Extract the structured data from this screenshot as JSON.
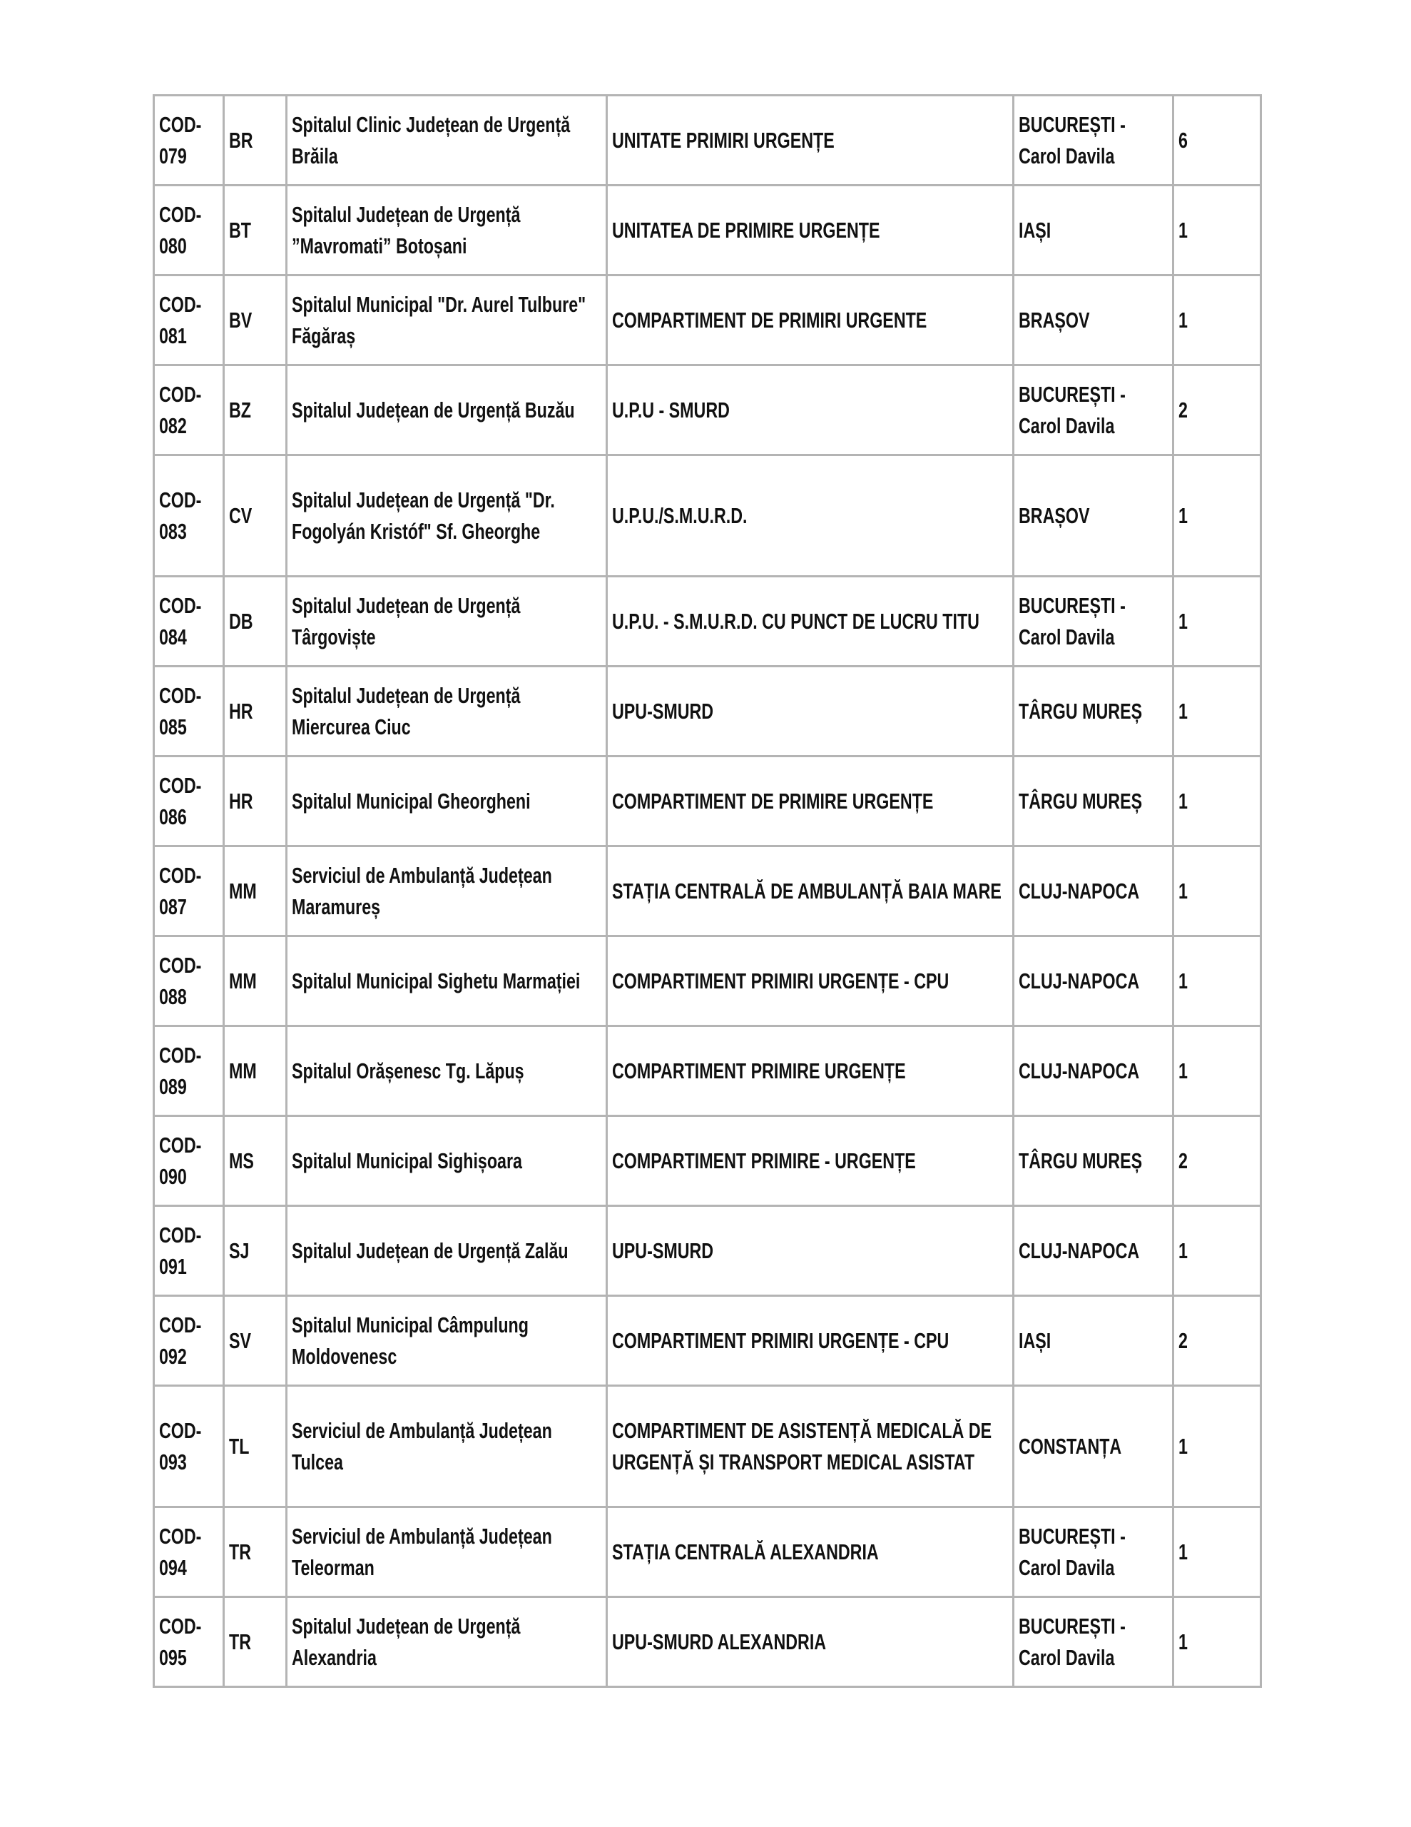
{
  "rows": [
    {
      "code": "COD-079",
      "county": "BR",
      "hospital": "Spitalul Clinic Județean de Urgență Brăila",
      "unit": "UNITATE PRIMIRI URGENȚE",
      "center": "BUCUREȘTI - Carol Davila",
      "count": "6"
    },
    {
      "code": "COD-080",
      "county": "BT",
      "hospital": "Spitalul Județean de Urgență ”Mavromati” Botoșani",
      "unit": "UNITATEA DE PRIMIRE URGENȚE",
      "center": "IAȘI",
      "count": "1"
    },
    {
      "code": "COD-081",
      "county": "BV",
      "hospital": "Spitalul Municipal \"Dr. Aurel Tulbure\" Făgăraș",
      "unit": "COMPARTIMENT DE PRIMIRI URGENTE",
      "center": "BRAȘOV",
      "count": "1"
    },
    {
      "code": "COD-082",
      "county": "BZ",
      "hospital": "Spitalul Județean de Urgență Buzău",
      "unit": "U.P.U - SMURD",
      "center": "BUCUREȘTI - Carol Davila",
      "count": "2"
    },
    {
      "code": "COD-083",
      "county": "CV",
      "hospital": "Spitalul Județean de Urgență \"Dr. Fogolyán Kristóf\" Sf. Gheorghe",
      "unit": "U.P.U./S.M.U.R.D.",
      "center": "BRAȘOV",
      "count": "1"
    },
    {
      "code": "COD-084",
      "county": "DB",
      "hospital": "Spitalul Județean de Urgență Târgoviște",
      "unit": "U.P.U. - S.M.U.R.D. CU PUNCT DE LUCRU TITU",
      "center": "BUCUREȘTI - Carol Davila",
      "count": "1"
    },
    {
      "code": "COD-085",
      "county": "HR",
      "hospital": "Spitalul Județean de Urgență Miercurea Ciuc",
      "unit": "UPU-SMURD",
      "center": "TÂRGU MUREȘ",
      "count": "1"
    },
    {
      "code": "COD-086",
      "county": "HR",
      "hospital": "Spitalul Municipal Gheorgheni",
      "unit": "COMPARTIMENT DE PRIMIRE URGENȚE",
      "center": "TÂRGU MUREȘ",
      "count": "1"
    },
    {
      "code": "COD-087",
      "county": "MM",
      "hospital": "Serviciul de Ambulanță Județean Maramureș",
      "unit": "STAȚIA CENTRALĂ DE AMBULANȚĂ BAIA MARE",
      "center": "CLUJ-NAPOCA",
      "count": "1"
    },
    {
      "code": "COD-088",
      "county": "MM",
      "hospital": "Spitalul Municipal Sighetu Marmației",
      "unit": "COMPARTIMENT PRIMIRI URGENȚE - CPU",
      "center": "CLUJ-NAPOCA",
      "count": "1"
    },
    {
      "code": "COD-089",
      "county": "MM",
      "hospital": "Spitalul Orășenesc Tg. Lăpuș",
      "unit": "COMPARTIMENT PRIMIRE URGENȚE",
      "center": "CLUJ-NAPOCA",
      "count": "1"
    },
    {
      "code": "COD-090",
      "county": "MS",
      "hospital": "Spitalul Municipal Sighișoara",
      "unit": "COMPARTIMENT PRIMIRE - URGENȚE",
      "center": "TÂRGU MUREȘ",
      "count": "2"
    },
    {
      "code": "COD-091",
      "county": "SJ",
      "hospital": "Spitalul Județean de Urgență Zalău",
      "unit": "UPU-SMURD",
      "center": "CLUJ-NAPOCA",
      "count": "1"
    },
    {
      "code": "COD-092",
      "county": "SV",
      "hospital": "Spitalul Municipal Câmpulung Moldovenesc",
      "unit": "COMPARTIMENT PRIMIRI URGENȚE - CPU",
      "center": "IAȘI",
      "count": "2"
    },
    {
      "code": "COD-093",
      "county": "TL",
      "hospital": "Serviciul de Ambulanță Județean Tulcea",
      "unit": "COMPARTIMENT DE ASISTENȚĂ MEDICALĂ DE URGENȚĂ ȘI TRANSPORT MEDICAL ASISTAT",
      "center": "CONSTANȚA",
      "count": "1"
    },
    {
      "code": "COD-094",
      "county": "TR",
      "hospital": "Serviciul de Ambulanță Județean Teleorman",
      "unit": "STAȚIA CENTRALĂ ALEXANDRIA",
      "center": "BUCUREȘTI - Carol Davila",
      "count": "1"
    },
    {
      "code": "COD-095",
      "county": "TR",
      "hospital": "Spitalul Județean de Urgență Alexandria",
      "unit": "UPU-SMURD ALEXANDRIA",
      "center": "BUCUREȘTI - Carol Davila",
      "count": "1"
    }
  ]
}
